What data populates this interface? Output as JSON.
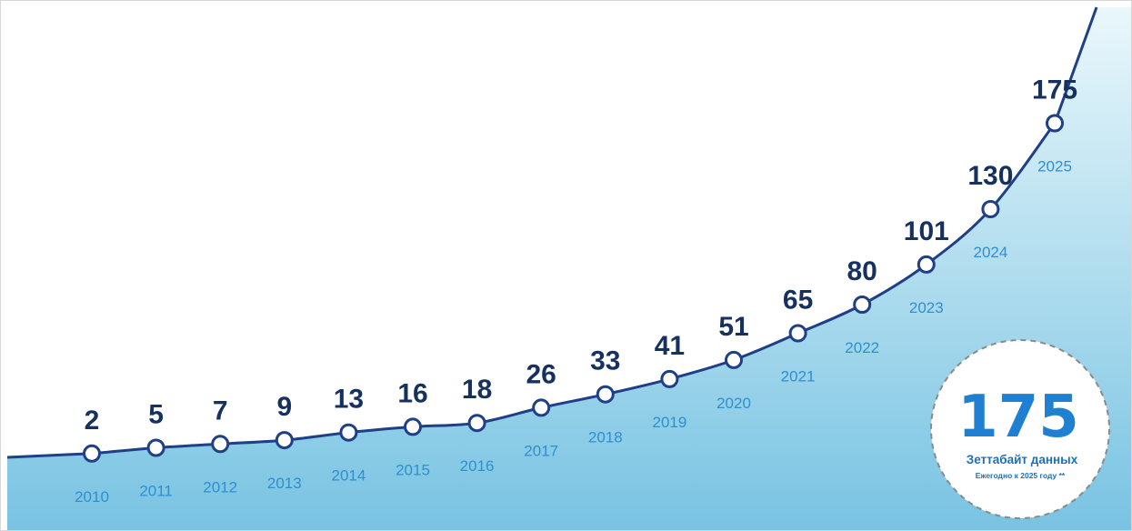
{
  "chart_data": {
    "type": "line",
    "categories": [
      "2010",
      "2011",
      "2012",
      "2013",
      "2014",
      "2015",
      "2016",
      "2017",
      "2018",
      "2019",
      "2020",
      "2021",
      "2022",
      "2023",
      "2024",
      "2025"
    ],
    "series": [
      {
        "values": [
          2,
          5,
          7,
          9,
          13,
          16,
          18,
          26,
          33,
          41,
          51,
          65,
          80,
          101,
          130,
          175
        ]
      }
    ],
    "value_labels": [
      "2",
      "5",
      "7",
      "9",
      "13",
      "16",
      "18",
      "26",
      "33",
      "41",
      "51",
      "65",
      "80",
      "101",
      "130",
      "175"
    ],
    "xlabel": "",
    "ylabel": "",
    "grid": false,
    "legend": "none"
  },
  "badge": {
    "value": "175",
    "line1": "Зеттабайт данных",
    "line2": "Ежегодно к 2025 году **"
  },
  "colors": {
    "line": "#1f3f86",
    "value_text": "#17315f",
    "year_text": "#2f8fcf",
    "area_top": "#eaf7fb",
    "area_bottom": "#78c3e2",
    "badge_value": "#1f7fd0"
  }
}
